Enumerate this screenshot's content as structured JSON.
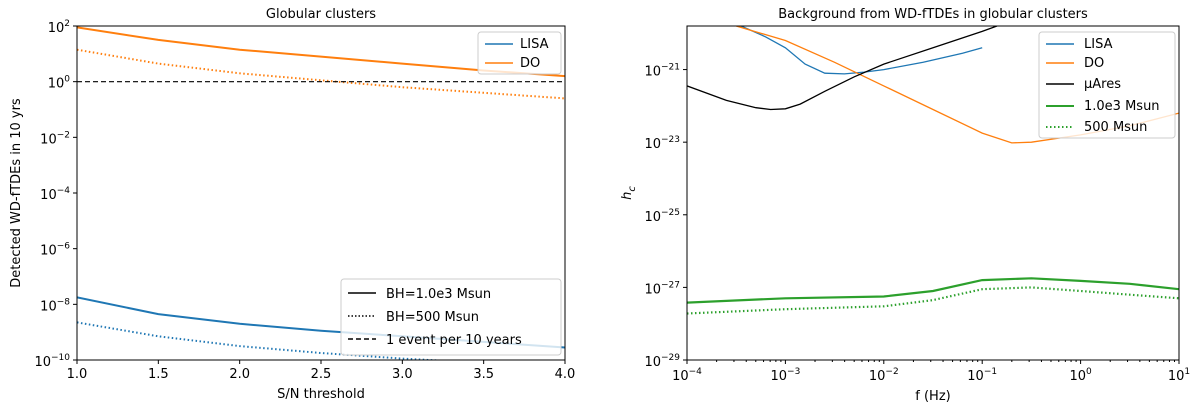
{
  "chart_data": [
    {
      "type": "line",
      "title": "Globular clusters",
      "xlabel": "S/N threshold",
      "ylabel": "Detected WD-fTDEs in 10 yrs",
      "xlim": [
        1.0,
        4.0
      ],
      "ylim_log10": [
        -10,
        2
      ],
      "yscale": "log",
      "x_ticks": [
        "1.0",
        "1.5",
        "2.0",
        "2.5",
        "3.0",
        "3.5",
        "4.0"
      ],
      "y_ticks": [
        {
          "base": "10",
          "exp": "2"
        },
        {
          "base": "10",
          "exp": "0"
        },
        {
          "base": "10",
          "exp": "−2"
        },
        {
          "base": "10",
          "exp": "−4"
        },
        {
          "base": "10",
          "exp": "−6"
        },
        {
          "base": "10",
          "exp": "−8"
        },
        {
          "base": "10",
          "exp": "−10"
        }
      ],
      "series": [
        {
          "name": "LISA",
          "style": "solid",
          "color": "#1f77b4",
          "x": [
            1.0,
            1.5,
            2.0,
            2.5,
            3.0,
            3.5,
            4.0
          ],
          "log10_y": [
            -7.75,
            -8.35,
            -8.7,
            -8.95,
            -9.15,
            -9.35,
            -9.55
          ]
        },
        {
          "name": "LISA",
          "style": "dotted",
          "color": "#1f77b4",
          "x": [
            1.0,
            1.5,
            2.0,
            2.5,
            3.0,
            3.5,
            4.0
          ],
          "log10_y": [
            -8.65,
            -9.15,
            -9.5,
            -9.75,
            -9.95,
            -10.1,
            -10.25
          ]
        },
        {
          "name": "DO",
          "style": "solid",
          "color": "#ff7f0e",
          "x": [
            1.0,
            1.5,
            2.0,
            2.5,
            3.0,
            3.5,
            4.0
          ],
          "log10_y": [
            1.95,
            1.5,
            1.15,
            0.9,
            0.65,
            0.4,
            0.2
          ]
        },
        {
          "name": "DO",
          "style": "dotted",
          "color": "#ff7f0e",
          "x": [
            1.0,
            1.5,
            2.0,
            2.5,
            3.0,
            3.5,
            4.0
          ],
          "log10_y": [
            1.15,
            0.65,
            0.3,
            0.05,
            -0.2,
            -0.4,
            -0.6
          ]
        },
        {
          "name": "1 event per 10 years",
          "style": "dashed",
          "color": "#000000",
          "x": [
            1.0,
            4.0
          ],
          "log10_y": [
            0,
            0
          ]
        }
      ],
      "legend_top": {
        "position": "top-right",
        "entries": [
          "LISA",
          "DO"
        ]
      },
      "legend_bottom": {
        "position": "bottom-right",
        "entries": [
          "BH=1.0e3 Msun",
          "BH=500 Msun",
          "1 event per 10 years"
        ]
      }
    },
    {
      "type": "line",
      "title": "Background from WD-fTDEs in globular clusters",
      "xlabel": "f (Hz)",
      "ylabel": "h",
      "ylabel_sub": "c",
      "xscale": "log",
      "yscale": "log",
      "xlim_log10": [
        -4,
        1
      ],
      "ylim_log10": [
        -29,
        -19.8
      ],
      "x_ticks": [
        {
          "base": "10",
          "exp": "−4"
        },
        {
          "base": "10",
          "exp": "−3"
        },
        {
          "base": "10",
          "exp": "−2"
        },
        {
          "base": "10",
          "exp": "−1"
        },
        {
          "base": "10",
          "exp": "0"
        },
        {
          "base": "10",
          "exp": "1"
        }
      ],
      "y_ticks": [
        {
          "base": "10",
          "exp": "−21"
        },
        {
          "base": "10",
          "exp": "−23"
        },
        {
          "base": "10",
          "exp": "−25"
        },
        {
          "base": "10",
          "exp": "−27"
        },
        {
          "base": "10",
          "exp": "−29"
        }
      ],
      "series": [
        {
          "name": "LISA",
          "style": "solid",
          "color": "#1f77b4",
          "log10_x": [
            -3.45,
            -3.2,
            -3.0,
            -2.8,
            -2.6,
            -2.4,
            -2.2,
            -2.0,
            -1.6,
            -1.2,
            -1.0
          ],
          "log10_y": [
            -19.8,
            -20.1,
            -20.4,
            -20.85,
            -21.1,
            -21.12,
            -21.07,
            -21.0,
            -20.8,
            -20.55,
            -20.4
          ]
        },
        {
          "name": "DO",
          "style": "solid",
          "color": "#ff7f0e",
          "log10_x": [
            -3.5,
            -3.0,
            -2.5,
            -2.0,
            -1.5,
            -1.0,
            -0.7,
            -0.5,
            0.0,
            0.5,
            1.0
          ],
          "log10_y": [
            -19.8,
            -20.2,
            -20.8,
            -21.45,
            -22.1,
            -22.75,
            -23.02,
            -23.0,
            -22.8,
            -22.55,
            -22.2
          ]
        },
        {
          "name": "μAres",
          "style": "solid",
          "color": "#000000",
          "log10_x": [
            -4.0,
            -3.6,
            -3.3,
            -3.15,
            -3.0,
            -2.85,
            -2.6,
            -2.3,
            -2.0,
            -1.5,
            -1.0,
            -0.85
          ],
          "log10_y": [
            -21.45,
            -21.85,
            -22.05,
            -22.1,
            -22.08,
            -21.95,
            -21.6,
            -21.2,
            -20.85,
            -20.4,
            -19.95,
            -19.8
          ]
        },
        {
          "name": "1.0e3 Msun",
          "style": "solid",
          "color": "#2ca02c",
          "log10_x": [
            -4.0,
            -3.0,
            -2.0,
            -1.5,
            -1.0,
            -0.5,
            0.0,
            0.5,
            1.0
          ],
          "log10_y": [
            -27.42,
            -27.3,
            -27.25,
            -27.1,
            -26.8,
            -26.75,
            -26.82,
            -26.9,
            -27.05
          ]
        },
        {
          "name": "500 Msun",
          "style": "dotted",
          "color": "#2ca02c",
          "log10_x": [
            -4.0,
            -3.0,
            -2.0,
            -1.5,
            -1.0,
            -0.5,
            0.0,
            0.5,
            1.0
          ],
          "log10_y": [
            -27.72,
            -27.6,
            -27.52,
            -27.35,
            -27.05,
            -27.0,
            -27.1,
            -27.2,
            -27.3
          ]
        }
      ],
      "legend": {
        "position": "top-right",
        "entries": [
          "LISA",
          "DO",
          "μAres",
          "1.0e3 Msun",
          "500 Msun"
        ]
      }
    }
  ]
}
